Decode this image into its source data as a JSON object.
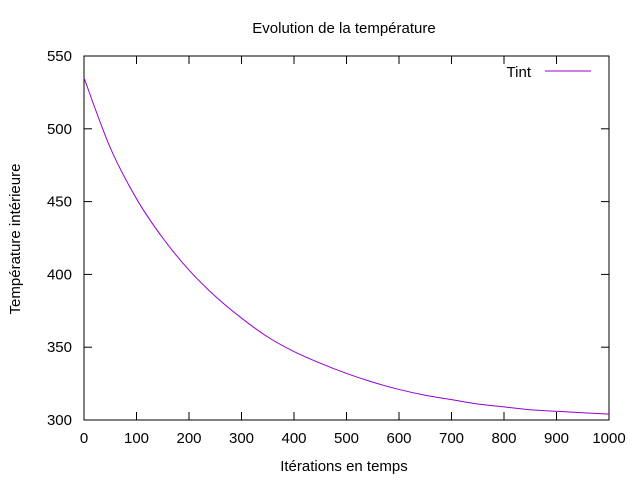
{
  "chart_data": {
    "type": "line",
    "title": "Evolution de la température",
    "xlabel": "Itérations en temps",
    "ylabel": "Température intérieure",
    "xlim": [
      0,
      1000
    ],
    "ylim": [
      300,
      550
    ],
    "xticks": [
      "0",
      "100",
      "200",
      "300",
      "400",
      "500",
      "600",
      "700",
      "800",
      "900",
      "1000"
    ],
    "yticks": [
      "300",
      "350",
      "400",
      "450",
      "500",
      "550"
    ],
    "grid": false,
    "legend_position": "top-right",
    "series": [
      {
        "name": "Tint",
        "color": "#9400d3",
        "x": [
          0,
          50,
          100,
          150,
          200,
          250,
          300,
          350,
          400,
          450,
          500,
          550,
          600,
          650,
          700,
          750,
          800,
          850,
          900,
          950,
          1000
        ],
        "y": [
          535,
          487,
          452,
          425,
          403,
          385,
          370,
          357,
          347,
          339,
          332,
          326,
          321,
          317,
          314,
          311,
          309,
          307,
          306,
          305,
          304
        ]
      }
    ]
  }
}
